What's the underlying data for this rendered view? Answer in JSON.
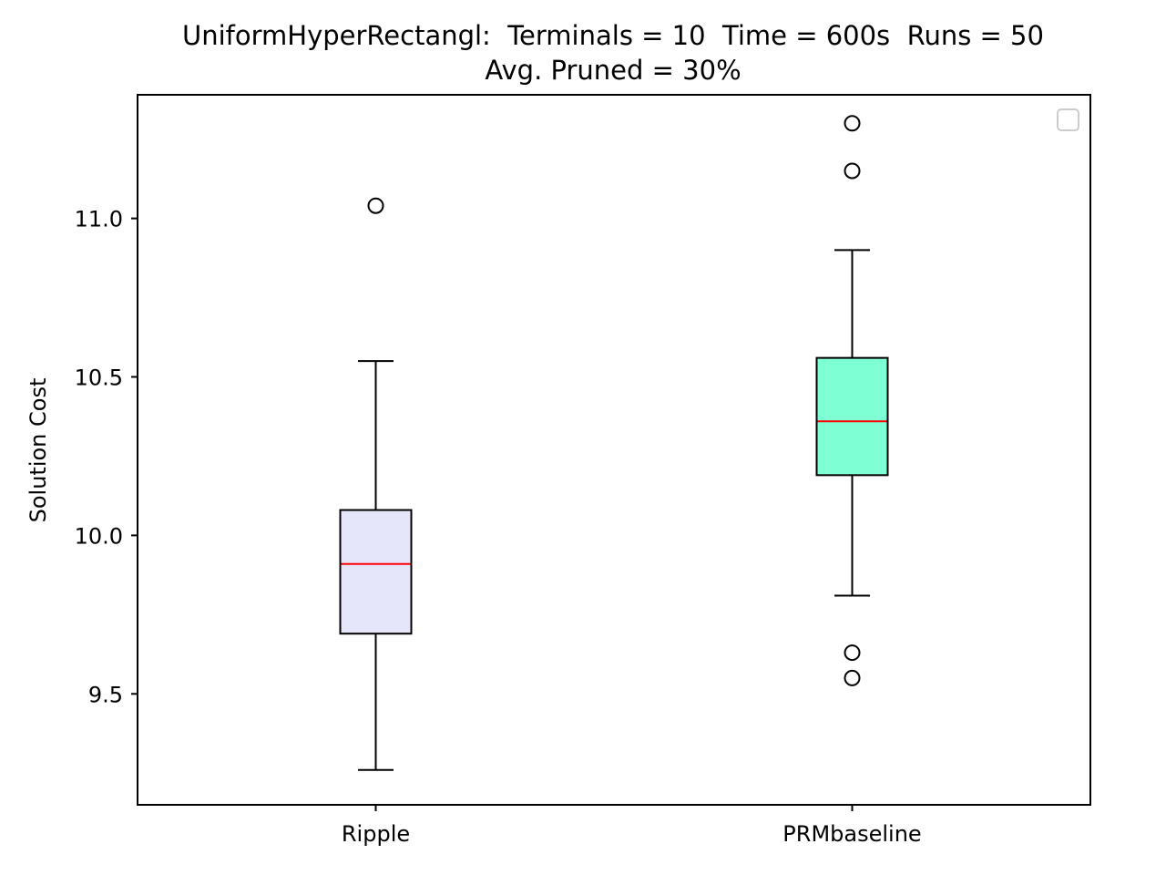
{
  "chart_data": {
    "type": "box",
    "title": "UniformHyperRectangl:  Terminals = 10  Time = 600s  Runs = 50",
    "subtitle": "Avg. Pruned = 30%",
    "xlabel": "",
    "ylabel": "Solution Cost",
    "ylim": [
      9.15,
      11.39
    ],
    "yticks": [
      9.5,
      10.0,
      10.5,
      11.0
    ],
    "ytick_labels": [
      "9.5",
      "10.0",
      "10.5",
      "11.0"
    ],
    "categories": [
      "Ripple",
      "PRMbaseline"
    ],
    "legend": "top-right",
    "grid": false,
    "boxes": [
      {
        "category": "Ripple",
        "whisker_low": 9.26,
        "q1": 9.69,
        "median": 9.91,
        "q3": 10.08,
        "whisker_high": 10.55,
        "outliers": [
          11.04
        ],
        "color": "#e6e6fa"
      },
      {
        "category": "PRMbaseline",
        "whisker_low": 9.81,
        "q1": 10.19,
        "median": 10.36,
        "q3": 10.56,
        "whisker_high": 10.9,
        "outliers": [
          11.3,
          11.15,
          9.63,
          9.55
        ],
        "color": "#7fffd4"
      }
    ],
    "median_color": "#ff0000"
  }
}
